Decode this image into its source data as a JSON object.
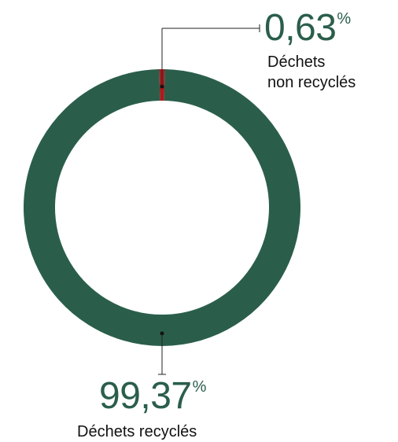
{
  "chart_data": {
    "type": "pie",
    "categories": [
      "Déchets non recyclés",
      "Déchets recyclés"
    ],
    "values": [
      0.63,
      99.37
    ],
    "unit": "%",
    "colors": {
      "non_recycled": "#a61e1e",
      "recycled": "#2a5e4b"
    },
    "annotations": [
      {
        "value": "0,63",
        "unit": "%",
        "label_line1": "Déchets",
        "label_line2": "non recyclés"
      },
      {
        "value": "99,37",
        "unit": "%",
        "label": "Déchets recyclés"
      }
    ]
  }
}
